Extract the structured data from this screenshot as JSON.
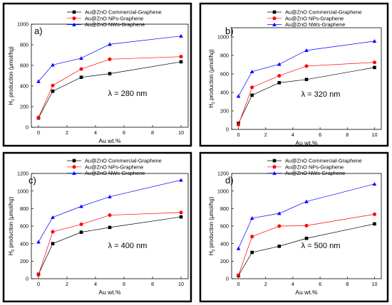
{
  "chart_data": [
    {
      "type": "line",
      "panel_label": "a)",
      "wavelength_label": "λ = 280 nm",
      "xlabel": "Au wt.%",
      "ylabel": "H2 production (μmol/hg)",
      "xlim": [
        -0.5,
        10.5
      ],
      "ylim": [
        0,
        1000
      ],
      "xticks": [
        0,
        2,
        4,
        6,
        8,
        10
      ],
      "yticks": [
        0,
        200,
        400,
        600,
        800,
        1000
      ],
      "x": [
        0,
        1,
        3,
        5,
        10
      ],
      "series": [
        {
          "name": "Au@ZnO Commercial-Graphene",
          "marker": "square",
          "color": "#000000",
          "values": [
            90,
            350,
            485,
            520,
            635
          ]
        },
        {
          "name": "Au@ZnO NPs-Graphene",
          "marker": "circle",
          "color": "#ff0000",
          "values": [
            95,
            405,
            565,
            660,
            685
          ]
        },
        {
          "name": "Au@ZnO NWs-Graphene",
          "marker": "triangle",
          "color": "#0000ff",
          "values": [
            445,
            605,
            670,
            805,
            885
          ]
        }
      ]
    },
    {
      "type": "line",
      "panel_label": "b)",
      "wavelength_label": "λ = 320 nm",
      "xlabel": "Au wt.%",
      "ylabel": "H2 production (μmol/hg)",
      "xlim": [
        -0.5,
        10.5
      ],
      "ylim": [
        0,
        1100
      ],
      "xticks": [
        0,
        2,
        4,
        6,
        8,
        10
      ],
      "yticks": [
        0,
        200,
        400,
        600,
        800,
        1000
      ],
      "x": [
        0,
        1,
        3,
        5,
        10
      ],
      "series": [
        {
          "name": "Au@ZnO Commercial-Graphene",
          "marker": "square",
          "color": "#000000",
          "values": [
            65,
            370,
            505,
            540,
            670
          ]
        },
        {
          "name": "Au@ZnO NPs-Graphene",
          "marker": "circle",
          "color": "#ff0000",
          "values": [
            50,
            455,
            580,
            685,
            725
          ]
        },
        {
          "name": "Au@ZnO NWs-Graphene",
          "marker": "triangle",
          "color": "#0000ff",
          "values": [
            360,
            625,
            705,
            855,
            955
          ]
        }
      ]
    },
    {
      "type": "line",
      "panel_label": "c)",
      "wavelength_label": "λ = 400 nm",
      "xlabel": "Au wt.%",
      "ylabel": "H2 production (μmol/hg)",
      "xlim": [
        -0.5,
        10.5
      ],
      "ylim": [
        0,
        1200
      ],
      "xticks": [
        0,
        2,
        4,
        6,
        8,
        10
      ],
      "yticks": [
        0,
        200,
        400,
        600,
        800,
        1000,
        1200
      ],
      "x": [
        0,
        1,
        3,
        5,
        10
      ],
      "series": [
        {
          "name": "Au@ZnO Commercial-Graphene",
          "marker": "square",
          "color": "#000000",
          "values": [
            50,
            400,
            530,
            585,
            705
          ]
        },
        {
          "name": "Au@ZnO NPs-Graphene",
          "marker": "circle",
          "color": "#ff0000",
          "values": [
            45,
            535,
            620,
            725,
            755
          ]
        },
        {
          "name": "Au@ZnO NWs-Graphene",
          "marker": "triangle",
          "color": "#0000ff",
          "values": [
            420,
            700,
            825,
            935,
            1125
          ]
        }
      ]
    },
    {
      "type": "line",
      "panel_label": "d)",
      "wavelength_label": "λ = 500 nm",
      "xlabel": "Au wt.%",
      "ylabel": "H2 production (μmol/hg)",
      "xlim": [
        -0.5,
        10.5
      ],
      "ylim": [
        0,
        1200
      ],
      "xticks": [
        0,
        2,
        4,
        6,
        8,
        10
      ],
      "yticks": [
        0,
        200,
        400,
        600,
        800,
        1000,
        1200
      ],
      "x": [
        0,
        1,
        3,
        5,
        10
      ],
      "series": [
        {
          "name": "Au@ZnO Commercial-Graphene",
          "marker": "square",
          "color": "#000000",
          "values": [
            35,
            300,
            370,
            460,
            625
          ]
        },
        {
          "name": "Au@ZnO NPs-Graphene",
          "marker": "circle",
          "color": "#ff0000",
          "values": [
            40,
            480,
            600,
            605,
            735
          ]
        },
        {
          "name": "Au@ZnO NWs-Graphene",
          "marker": "triangle",
          "color": "#0000ff",
          "values": [
            345,
            690,
            745,
            880,
            1080
          ]
        }
      ]
    }
  ]
}
